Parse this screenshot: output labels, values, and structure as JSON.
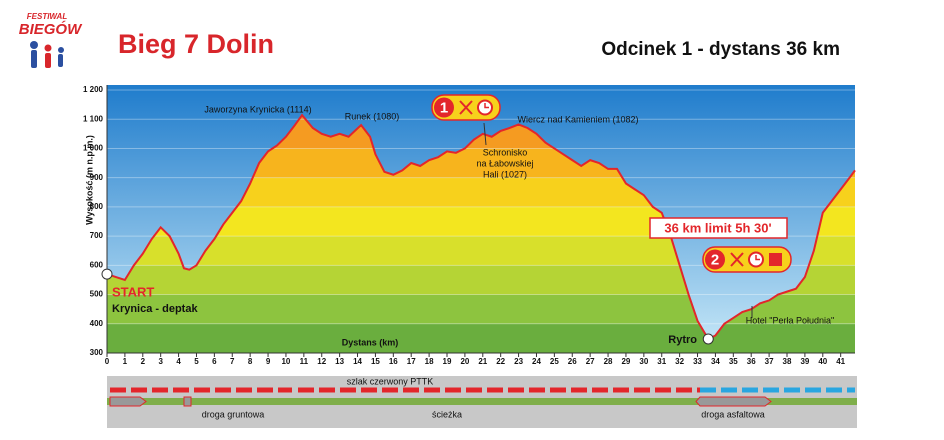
{
  "chart_data": {
    "type": "area",
    "logo": [
      "FESTIWAL",
      "BIEGÓW"
    ],
    "title": "Bieg 7 Dolin",
    "subtitle": "Odcinek 1 - dystans 36 km",
    "x_label": "Dystans (km)",
    "y_label": "Wysokość (m n.p.m.)",
    "x": [
      0,
      0.5,
      1,
      1.5,
      2,
      2.5,
      3,
      3.5,
      4,
      4.3,
      4.6,
      5,
      5.5,
      6,
      6.5,
      7,
      7.5,
      8,
      8.5,
      9,
      9.5,
      10,
      10.5,
      10.9,
      11.5,
      12,
      12.5,
      13,
      13.5,
      14.2,
      14.7,
      15,
      15.5,
      16,
      16.5,
      17,
      17.5,
      18,
      18.5,
      19,
      19.5,
      20,
      20.5,
      21,
      21.5,
      22,
      22.5,
      23,
      23.5,
      24,
      24.5,
      25,
      25.5,
      26,
      26.5,
      27,
      27.5,
      28,
      28.5,
      29,
      29.5,
      30,
      30.5,
      31,
      31.5,
      32,
      32.5,
      33,
      33.6,
      34,
      34.5,
      35,
      35.5,
      36,
      36.5,
      37,
      37.5,
      38,
      38.5,
      39,
      39.5,
      40,
      40.5,
      41,
      41.5,
      41.8
    ],
    "values": [
      570,
      560,
      550,
      600,
      640,
      690,
      730,
      700,
      640,
      590,
      585,
      600,
      650,
      690,
      740,
      780,
      820,
      880,
      950,
      990,
      1010,
      1040,
      1080,
      1114,
      1070,
      1050,
      1040,
      1050,
      1040,
      1080,
      1040,
      980,
      920,
      910,
      925,
      950,
      940,
      960,
      970,
      990,
      985,
      1000,
      1030,
      1050,
      1040,
      1060,
      1070,
      1082,
      1070,
      1050,
      1020,
      1000,
      980,
      960,
      940,
      960,
      950,
      930,
      930,
      880,
      860,
      840,
      800,
      780,
      700,
      600,
      500,
      410,
      348,
      360,
      400,
      420,
      440,
      450,
      470,
      480,
      500,
      510,
      520,
      560,
      650,
      780,
      820,
      860,
      900,
      925
    ],
    "color": "#e3262b",
    "xlim": [
      0,
      41.8
    ],
    "ylim": [
      300,
      1200
    ],
    "xticks": [
      0,
      1,
      2,
      3,
      4,
      5,
      6,
      7,
      8,
      9,
      10,
      11,
      12,
      13,
      14,
      15,
      16,
      17,
      18,
      19,
      20,
      21,
      22,
      23,
      24,
      25,
      26,
      27,
      28,
      29,
      30,
      31,
      32,
      33,
      34,
      35,
      36,
      37,
      38,
      39,
      40,
      41
    ],
    "yticks": [
      300,
      400,
      500,
      600,
      700,
      800,
      900,
      {
        "value": 1000,
        "label": "1 000"
      },
      {
        "value": 1100,
        "label": "1 100"
      },
      {
        "value": 1200,
        "label": "1 200"
      }
    ],
    "annotations": [
      "Jaworzyna Krynicka (1114)",
      "Runek (1080)",
      "Wiercz nad Kamieniem (1082)"
    ],
    "shelter": [
      "Schronisko",
      "na Łabowskiej",
      "Hali  (1027)"
    ],
    "start": [
      "START",
      "Krynica - deptak"
    ],
    "finish": "Rytro",
    "limit": "36 km limit 5h 30'",
    "stations": [
      "1",
      "2"
    ],
    "hotel": "Hotel \"Perła Południa\"",
    "route_legend": [
      "szlak czerwony PTTK",
      "droga gruntowa",
      "ścieżka",
      "droga asfaltowa"
    ]
  }
}
